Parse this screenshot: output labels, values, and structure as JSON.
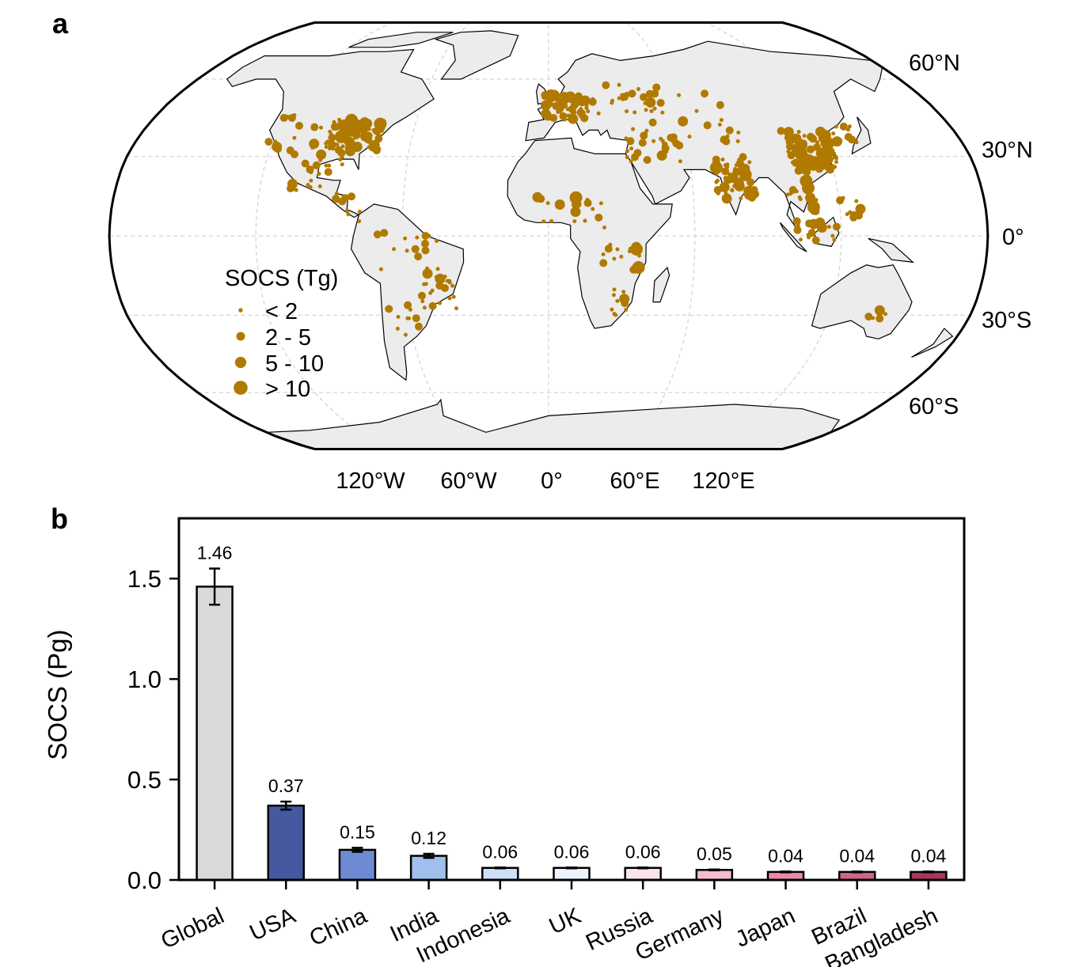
{
  "panel_a": {
    "label": "a",
    "lat_labels": [
      "60°N",
      "30°N",
      "0°",
      "30°S",
      "60°S"
    ],
    "lon_labels": [
      "120°W",
      "60°W",
      "0°",
      "60°E",
      "120°E"
    ],
    "legend": {
      "title": "SOCS (Tg)",
      "items": [
        "< 2",
        "2 - 5",
        "5 - 10",
        "> 10"
      ]
    },
    "colors": {
      "land": "#ececec",
      "dots": "#b07a00",
      "grid": "#c8c8c8"
    }
  },
  "panel_b": {
    "label": "b"
  },
  "chart_data": {
    "type": "bar",
    "title": "",
    "xlabel": "",
    "ylabel": "SOCS (Pg)",
    "ylim": [
      0,
      1.8
    ],
    "yticks": [
      "0.0",
      "0.5",
      "1.0",
      "1.5"
    ],
    "ytick_values": [
      0,
      0.5,
      1.0,
      1.5
    ],
    "grid": false,
    "categories": [
      "Global",
      "USA",
      "China",
      "India",
      "Indonesia",
      "UK",
      "Russia",
      "Germany",
      "Japan",
      "Brazil",
      "Bangladesh"
    ],
    "values": [
      1.46,
      0.37,
      0.15,
      0.12,
      0.06,
      0.06,
      0.06,
      0.05,
      0.04,
      0.04,
      0.04
    ],
    "value_labels": [
      "1.46",
      "0.37",
      "0.15",
      "0.12",
      "0.06",
      "0.06",
      "0.06",
      "0.05",
      "0.04",
      "0.04",
      "0.04"
    ],
    "errors": [
      0.09,
      0.02,
      0.01,
      0.01,
      0.002,
      0.002,
      0.002,
      0.002,
      0.002,
      0.002,
      0.002
    ],
    "colors": [
      "#d9d9d9",
      "#4659a0",
      "#6e8ad2",
      "#a0bfec",
      "#cde0f6",
      "#ecf3fc",
      "#f9e4ec",
      "#f4bcd0",
      "#e98aaa",
      "#d0648a",
      "#a8375f"
    ]
  }
}
